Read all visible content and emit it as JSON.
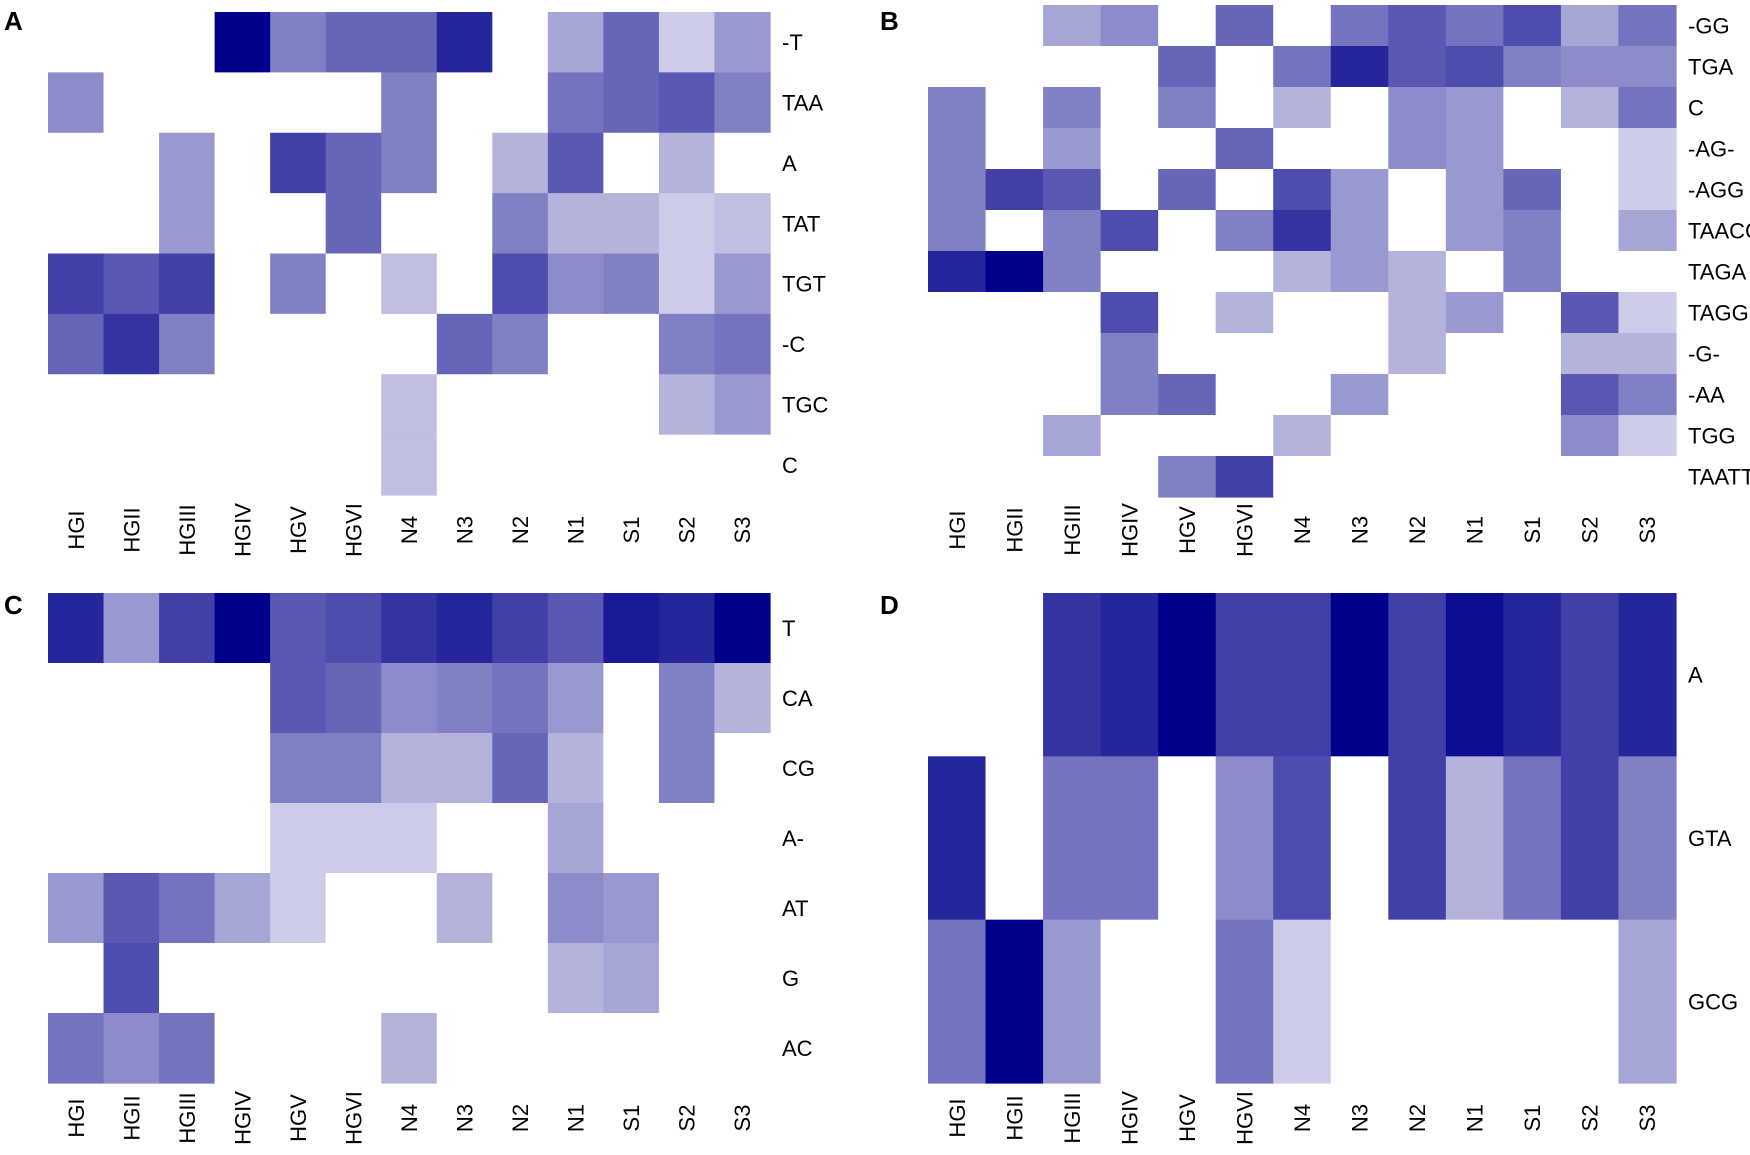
{
  "colors": {
    "low": "#ffffff",
    "high": "#00008b"
  },
  "chart_data": [
    {
      "type": "heatmap",
      "panel": "A",
      "columns": [
        "HGI",
        "HGII",
        "HGIII",
        "HGIV",
        "HGV",
        "HGVI",
        "N4",
        "N3",
        "N2",
        "N1",
        "S1",
        "S2",
        "S3"
      ],
      "rows": [
        "-T",
        "TAA",
        "A",
        "TAT",
        "TGT",
        "-C",
        "TGC",
        "C"
      ],
      "values": [
        [
          0,
          0,
          0,
          1.0,
          0.5,
          0.6,
          0.6,
          0.85,
          0,
          0.35,
          0.6,
          0.2,
          0.4
        ],
        [
          0.45,
          0,
          0,
          0,
          0,
          0,
          0.5,
          0,
          0,
          0.55,
          0.6,
          0.65,
          0.5
        ],
        [
          0,
          0,
          0.4,
          0,
          0.75,
          0.6,
          0.5,
          0,
          0.3,
          0.65,
          0,
          0.3,
          0
        ],
        [
          0,
          0,
          0.4,
          0,
          0,
          0.6,
          0,
          0,
          0.5,
          0.3,
          0.3,
          0.2,
          0.25
        ],
        [
          0.75,
          0.65,
          0.75,
          0,
          0.5,
          0,
          0.25,
          0,
          0.7,
          0.45,
          0.5,
          0.2,
          0.4
        ],
        [
          0.6,
          0.8,
          0.5,
          0,
          0,
          0,
          0,
          0.6,
          0.5,
          0,
          0,
          0.5,
          0.55
        ],
        [
          0,
          0,
          0,
          0,
          0,
          0,
          0.25,
          0,
          0,
          0,
          0,
          0.3,
          0.4
        ],
        [
          0,
          0,
          0,
          0,
          0,
          0,
          0.25,
          0,
          0,
          0,
          0,
          0,
          0
        ]
      ]
    },
    {
      "type": "heatmap",
      "panel": "B",
      "columns": [
        "HGI",
        "HGII",
        "HGIII",
        "HGIV",
        "HGV",
        "HGVI",
        "N4",
        "N3",
        "N2",
        "N1",
        "S1",
        "S2",
        "S3"
      ],
      "rows": [
        "-GG",
        "TGA",
        "C",
        "-AG-",
        "-AGG",
        "TAACC",
        "TAGA",
        "TAGG",
        "-G-",
        "-AA",
        "TGG",
        "TAATT"
      ],
      "values": [
        [
          0,
          0,
          0.35,
          0.45,
          0,
          0.6,
          0,
          0.55,
          0.65,
          0.55,
          0.7,
          0.35,
          0.55
        ],
        [
          0,
          0,
          0,
          0,
          0.6,
          0,
          0.55,
          0.85,
          0.65,
          0.7,
          0.5,
          0.45,
          0.45
        ],
        [
          0.5,
          0,
          0.5,
          0,
          0.5,
          0,
          0.3,
          0,
          0.45,
          0.4,
          0,
          0.3,
          0.55
        ],
        [
          0.5,
          0,
          0.4,
          0,
          0,
          0.6,
          0,
          0,
          0.45,
          0.4,
          0,
          0,
          0.2
        ],
        [
          0.5,
          0.75,
          0.65,
          0,
          0.6,
          0,
          0.7,
          0.4,
          0,
          0.4,
          0.6,
          0,
          0.2
        ],
        [
          0.5,
          0,
          0.5,
          0.7,
          0,
          0.5,
          0.8,
          0.4,
          0,
          0.4,
          0.5,
          0,
          0.35
        ],
        [
          0.85,
          1.0,
          0.5,
          0,
          0,
          0,
          0.3,
          0.4,
          0.3,
          0,
          0.5,
          0,
          0
        ],
        [
          0,
          0,
          0,
          0.7,
          0,
          0.3,
          0,
          0,
          0.3,
          0.4,
          0,
          0.65,
          0.2
        ],
        [
          0,
          0,
          0,
          0.5,
          0,
          0,
          0,
          0,
          0.3,
          0,
          0,
          0.3,
          0.3
        ],
        [
          0,
          0,
          0,
          0.5,
          0.6,
          0,
          0,
          0.4,
          0,
          0,
          0,
          0.65,
          0.5
        ],
        [
          0,
          0,
          0.35,
          0,
          0,
          0,
          0.3,
          0,
          0,
          0,
          0,
          0.45,
          0.2
        ],
        [
          0,
          0,
          0,
          0,
          0.5,
          0.75,
          0,
          0,
          0,
          0,
          0,
          0,
          0
        ]
      ]
    },
    {
      "type": "heatmap",
      "panel": "C",
      "columns": [
        "HGI",
        "HGII",
        "HGIII",
        "HGIV",
        "HGV",
        "HGVI",
        "N4",
        "N3",
        "N2",
        "N1",
        "S1",
        "S2",
        "S3"
      ],
      "rows": [
        "T",
        "CA",
        "CG",
        "A-",
        "AT",
        "G",
        "AC"
      ],
      "values": [
        [
          0.85,
          0.4,
          0.75,
          1.0,
          0.65,
          0.7,
          0.8,
          0.85,
          0.75,
          0.65,
          0.9,
          0.85,
          1.0
        ],
        [
          0,
          0,
          0,
          0,
          0.65,
          0.6,
          0.45,
          0.5,
          0.55,
          0.4,
          0,
          0.5,
          0.3
        ],
        [
          0,
          0,
          0,
          0,
          0.5,
          0.5,
          0.3,
          0.3,
          0.6,
          0.3,
          0,
          0.5,
          0
        ],
        [
          0,
          0,
          0,
          0,
          0.2,
          0.2,
          0.2,
          0,
          0,
          0.35,
          0,
          0,
          0
        ],
        [
          0.4,
          0.65,
          0.55,
          0.35,
          0.2,
          0,
          0,
          0.3,
          0,
          0.45,
          0.4,
          0,
          0
        ],
        [
          0,
          0.7,
          0,
          0,
          0,
          0,
          0,
          0,
          0,
          0.3,
          0.35,
          0,
          0
        ],
        [
          0.55,
          0.45,
          0.55,
          0,
          0,
          0,
          0.3,
          0,
          0,
          0,
          0,
          0,
          0
        ]
      ]
    },
    {
      "type": "heatmap",
      "panel": "D",
      "columns": [
        "HGI",
        "HGII",
        "HGIII",
        "HGIV",
        "HGV",
        "HGVI",
        "N4",
        "N3",
        "N2",
        "N1",
        "S1",
        "S2",
        "S3"
      ],
      "rows": [
        "A",
        "GTA",
        "GCG"
      ],
      "values": [
        [
          0,
          0,
          0.8,
          0.85,
          1.0,
          0.75,
          0.75,
          1.0,
          0.75,
          0.95,
          0.85,
          0.75,
          0.85
        ],
        [
          0.85,
          0,
          0.55,
          0.55,
          0,
          0.45,
          0.7,
          0,
          0.75,
          0.3,
          0.55,
          0.75,
          0.5
        ],
        [
          0.55,
          1.0,
          0.4,
          0,
          0,
          0.55,
          0.2,
          0,
          0,
          0,
          0,
          0,
          0.35
        ]
      ]
    }
  ]
}
